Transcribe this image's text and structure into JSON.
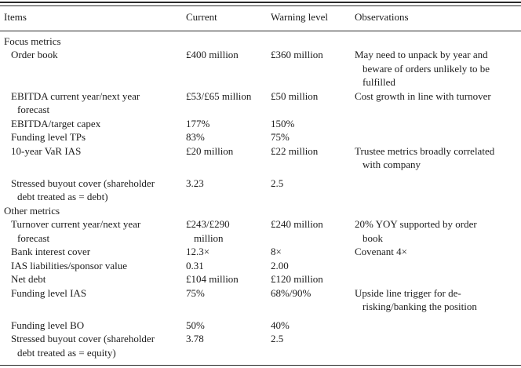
{
  "colors": {
    "background": "#ffffff",
    "text": "#1c1c1c",
    "rule": "#2a2a2a"
  },
  "table": {
    "headers": {
      "items": "Items",
      "current": "Current",
      "warning": "Warning level",
      "observations": "Observations"
    },
    "sections": [
      {
        "label": "Focus metrics",
        "rows": [
          {
            "item": "Order book",
            "current": "£400 million",
            "warning": "£360 million",
            "observations": "May need to unpack by year and beware of orders unlikely to be fulfilled"
          },
          {
            "item": "EBITDA current year/next year forecast",
            "current": "£53/£65 million",
            "warning": "£50 million",
            "observations": "Cost growth in line with turnover"
          },
          {
            "item": "EBITDA/target capex",
            "current": "177%",
            "warning": "150%",
            "observations": ""
          },
          {
            "item": "Funding level TPs",
            "current": "83%",
            "warning": "75%",
            "observations": ""
          },
          {
            "item": "10-year VaR IAS",
            "current": "£20 million",
            "warning": "£22 million",
            "observations": "Trustee metrics broadly correlated with company"
          },
          {
            "item": "Stressed buyout cover (shareholder debt treated as = debt)",
            "current": "3.23",
            "warning": "2.5",
            "observations": ""
          }
        ]
      },
      {
        "label": "Other metrics",
        "rows": [
          {
            "item": "Turnover current year/next year forecast",
            "current": "£243/£290 million",
            "warning": "£240 million",
            "observations": "20% YOY supported by order book"
          },
          {
            "item": "Bank interest cover",
            "current": "12.3×",
            "warning": "8×",
            "observations": "Covenant 4×"
          },
          {
            "item": "IAS liabilities/sponsor value",
            "current": "0.31",
            "warning": "2.00",
            "observations": ""
          },
          {
            "item": "Net debt",
            "current": "£104 million",
            "warning": "£120 million",
            "observations": ""
          },
          {
            "item": "Funding level IAS",
            "current": "75%",
            "warning": "68%/90%",
            "observations": "Upside line trigger for de-risking/banking the position"
          },
          {
            "item": "Funding level BO",
            "current": "50%",
            "warning": "40%",
            "observations": ""
          },
          {
            "item": "Stressed buyout cover (shareholder debt treated as = equity)",
            "current": "3.78",
            "warning": "2.5",
            "observations": ""
          }
        ]
      }
    ]
  }
}
